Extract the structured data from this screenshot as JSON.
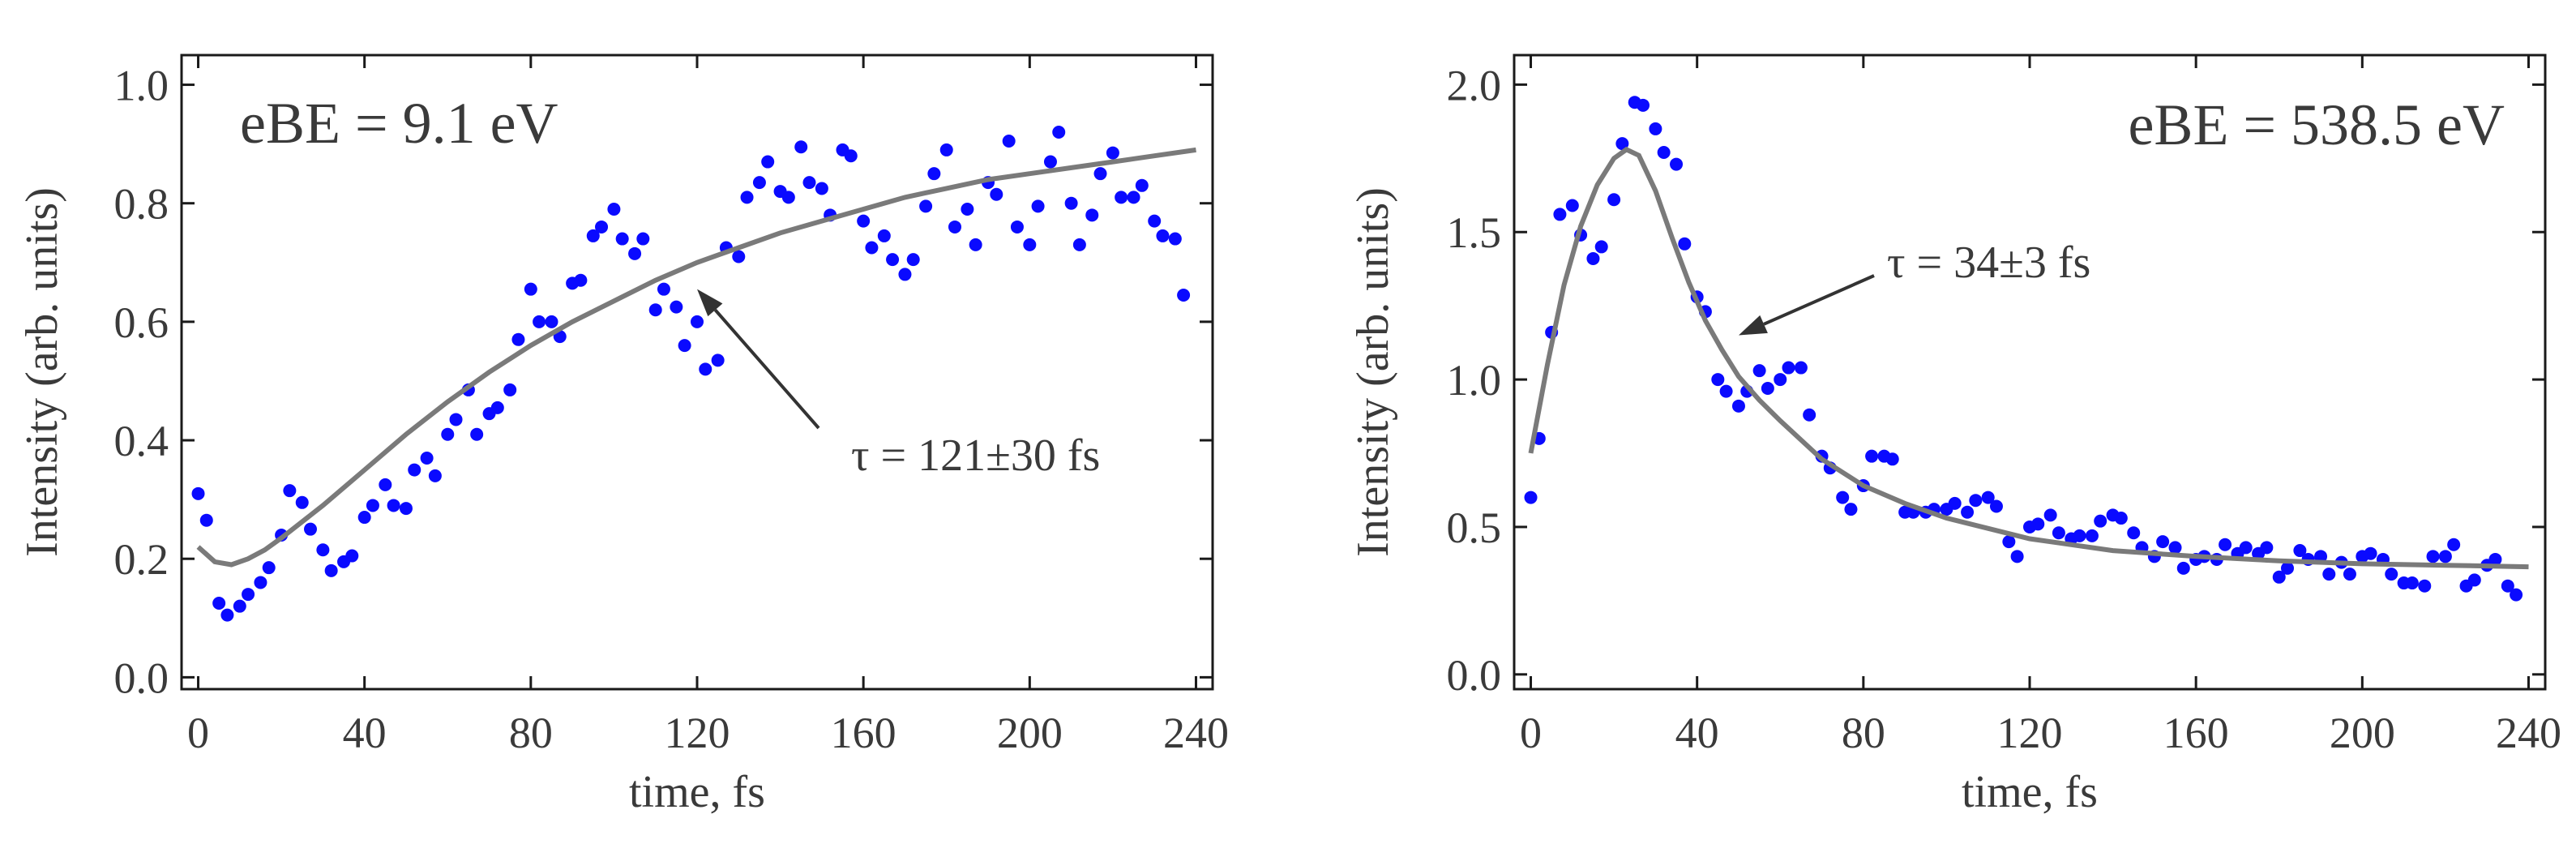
{
  "chart_data": [
    {
      "type": "scatter",
      "title": "",
      "panel_label": "eBE = 9.1 eV",
      "xlabel": "time, fs",
      "ylabel": "Intensity (arb. units)",
      "xlim": [
        -4,
        244
      ],
      "ylim": [
        -0.02,
        1.05
      ],
      "xticks": [
        0,
        40,
        80,
        120,
        160,
        200,
        240
      ],
      "yticks": [
        0.0,
        0.2,
        0.4,
        0.6,
        0.8,
        1.0
      ],
      "xtick_labels": [
        "0",
        "40",
        "80",
        "120",
        "160",
        "200",
        "240"
      ],
      "ytick_labels": [
        "0.0",
        "0.2",
        "0.4",
        "0.6",
        "0.8",
        "1.0"
      ],
      "annotation": {
        "text": "τ = 121±30 fs",
        "points_to": [
          120,
          0.655
        ]
      },
      "series": [
        {
          "x": [
            0,
            2,
            5,
            7,
            10,
            12,
            15,
            17,
            20,
            22,
            25,
            27,
            30,
            32,
            35,
            37,
            40,
            42,
            45,
            47,
            50,
            52,
            55,
            57,
            60,
            62,
            65,
            67,
            70,
            72,
            75,
            77,
            80,
            82,
            85,
            87,
            90,
            92,
            95,
            97,
            100,
            102,
            105,
            107,
            110,
            112,
            115,
            117,
            120,
            122,
            125,
            127,
            130,
            132,
            135,
            137,
            140,
            142,
            145,
            147,
            150,
            152,
            155,
            157,
            160,
            162,
            165,
            167,
            170,
            172,
            175,
            177,
            180,
            182,
            185,
            187,
            190,
            192,
            195,
            197,
            200,
            202,
            205,
            207,
            210,
            212,
            215,
            217,
            220,
            222,
            225,
            227,
            230,
            232,
            235,
            237
          ],
          "y": [
            0.31,
            0.265,
            0.125,
            0.105,
            0.12,
            0.14,
            0.16,
            0.185,
            0.24,
            0.315,
            0.295,
            0.25,
            0.215,
            0.18,
            0.195,
            0.205,
            0.27,
            0.29,
            0.325,
            0.29,
            0.285,
            0.35,
            0.37,
            0.34,
            0.41,
            0.435,
            0.485,
            0.41,
            0.445,
            0.455,
            0.485,
            0.57,
            0.655,
            0.6,
            0.6,
            0.575,
            0.665,
            0.67,
            0.745,
            0.76,
            0.79,
            0.74,
            0.715,
            0.74,
            0.62,
            0.655,
            0.625,
            0.56,
            0.6,
            0.52,
            0.535,
            0.725,
            0.71,
            0.81,
            0.835,
            0.87,
            0.82,
            0.81,
            0.895,
            0.835,
            0.825,
            0.78,
            0.89,
            0.88,
            0.77,
            0.725,
            0.745,
            0.705,
            0.68,
            0.705,
            0.795,
            0.85,
            0.89,
            0.76,
            0.79,
            0.73,
            0.835,
            0.815,
            0.905,
            0.76,
            0.73,
            0.795,
            0.87,
            0.92,
            0.8,
            0.73,
            0.78,
            0.85,
            0.885,
            0.81,
            0.81,
            0.83,
            0.77,
            0.745,
            0.74,
            0.645
          ]
        },
        {
          "x": [
            0,
            4,
            8,
            12,
            16,
            20,
            30,
            40,
            50,
            60,
            70,
            80,
            90,
            100,
            110,
            120,
            130,
            140,
            150,
            160,
            170,
            180,
            190,
            200,
            210,
            220,
            230,
            240
          ],
          "y": [
            0.22,
            0.195,
            0.19,
            0.2,
            0.215,
            0.235,
            0.29,
            0.35,
            0.41,
            0.465,
            0.515,
            0.56,
            0.6,
            0.635,
            0.67,
            0.7,
            0.725,
            0.75,
            0.77,
            0.79,
            0.81,
            0.825,
            0.84,
            0.85,
            0.86,
            0.87,
            0.88,
            0.89
          ]
        }
      ]
    },
    {
      "type": "scatter",
      "title": "",
      "panel_label": "eBE = 538.5 eV",
      "xlabel": "time, fs",
      "ylabel": "Intensity (arb. units)",
      "xlim": [
        -4,
        244
      ],
      "ylim": [
        -0.05,
        2.1
      ],
      "xticks": [
        0,
        40,
        80,
        120,
        160,
        200,
        240
      ],
      "yticks": [
        0.0,
        0.5,
        1.0,
        1.5,
        2.0
      ],
      "xtick_labels": [
        "0",
        "40",
        "80",
        "120",
        "160",
        "200",
        "240"
      ],
      "ytick_labels": [
        "0.0",
        "0.5",
        "1.0",
        "1.5",
        "2.0"
      ],
      "annotation": {
        "text": "τ = 34±3 fs",
        "points_to": [
          50,
          1.15
        ]
      },
      "series": [
        {
          "x": [
            0,
            2,
            5,
            7,
            10,
            12,
            15,
            17,
            20,
            22,
            25,
            27,
            30,
            32,
            35,
            37,
            40,
            42,
            45,
            47,
            50,
            52,
            55,
            57,
            60,
            62,
            65,
            67,
            70,
            72,
            75,
            77,
            80,
            82,
            85,
            87,
            90,
            92,
            95,
            97,
            100,
            102,
            105,
            107,
            110,
            112,
            115,
            117,
            120,
            122,
            125,
            127,
            130,
            132,
            135,
            137,
            140,
            142,
            145,
            147,
            150,
            152,
            155,
            157,
            160,
            162,
            165,
            167,
            170,
            172,
            175,
            177,
            180,
            182,
            185,
            187,
            190,
            192,
            195,
            197,
            200,
            202,
            205,
            207,
            210,
            212,
            215,
            217,
            220,
            222,
            225,
            227,
            230,
            232,
            235,
            237
          ],
          "y": [
            0.6,
            0.8,
            1.16,
            1.56,
            1.59,
            1.49,
            1.41,
            1.45,
            1.61,
            1.8,
            1.94,
            1.93,
            1.85,
            1.77,
            1.73,
            1.46,
            1.28,
            1.23,
            1.0,
            0.96,
            0.91,
            0.96,
            1.03,
            0.97,
            1.0,
            1.04,
            1.04,
            0.88,
            0.74,
            0.7,
            0.6,
            0.56,
            0.64,
            0.74,
            0.74,
            0.73,
            0.55,
            0.55,
            0.55,
            0.56,
            0.56,
            0.58,
            0.55,
            0.59,
            0.6,
            0.57,
            0.45,
            0.4,
            0.5,
            0.51,
            0.54,
            0.48,
            0.46,
            0.47,
            0.47,
            0.52,
            0.54,
            0.53,
            0.48,
            0.43,
            0.4,
            0.45,
            0.43,
            0.36,
            0.39,
            0.4,
            0.39,
            0.44,
            0.41,
            0.43,
            0.41,
            0.43,
            0.33,
            0.36,
            0.42,
            0.39,
            0.4,
            0.34,
            0.38,
            0.34,
            0.4,
            0.41,
            0.39,
            0.34,
            0.31,
            0.31,
            0.3,
            0.4,
            0.4,
            0.44,
            0.3,
            0.32,
            0.37,
            0.39,
            0.3,
            0.27
          ]
        },
        {
          "x": [
            0,
            4,
            8,
            12,
            16,
            20,
            23,
            26,
            30,
            34,
            38,
            42,
            46,
            50,
            55,
            60,
            70,
            80,
            90,
            100,
            120,
            140,
            160,
            180,
            200,
            220,
            240
          ],
          "y": [
            0.75,
            1.05,
            1.32,
            1.52,
            1.66,
            1.75,
            1.78,
            1.76,
            1.64,
            1.48,
            1.33,
            1.2,
            1.1,
            1.01,
            0.93,
            0.86,
            0.73,
            0.64,
            0.58,
            0.53,
            0.46,
            0.42,
            0.4,
            0.385,
            0.375,
            0.37,
            0.365
          ]
        }
      ]
    }
  ]
}
